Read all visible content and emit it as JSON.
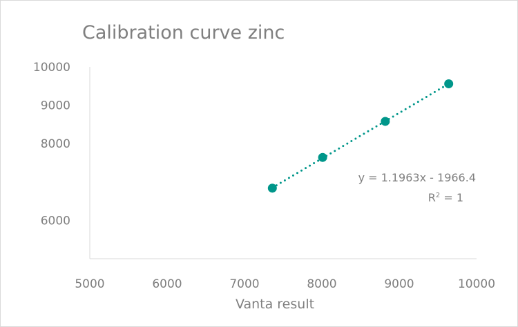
{
  "chart_data": {
    "type": "scatter",
    "title": "Calibration curve zinc",
    "xlabel": "Vanta result",
    "ylabel": "",
    "xlim": [
      5000,
      10000
    ],
    "ylim": [
      5000,
      10000
    ],
    "x_ticks": [
      "5000",
      "6000",
      "7000",
      "8000",
      "9000",
      "10000"
    ],
    "y_ticks": [
      "6000",
      "8000",
      "9000",
      "10000"
    ],
    "y_tick_values": [
      6000,
      8000,
      9000,
      10000
    ],
    "series": [
      {
        "x": [
          7360,
          8010,
          8820,
          9640
        ],
        "y": [
          6840,
          7640,
          8580,
          9560
        ]
      }
    ],
    "trendline": {
      "type": "linear",
      "style": "dotted",
      "equation": "y = 1.1963x - 1966.4",
      "r_squared_prefix": "R",
      "r_squared_superscript": "2",
      "r_squared_value": " = 1"
    },
    "grid": false,
    "legend": "none",
    "colors": {
      "marker": "#00968a",
      "trendline": "#00968a",
      "axis": "#d9d9d9",
      "text": "#7f7f7f"
    }
  }
}
